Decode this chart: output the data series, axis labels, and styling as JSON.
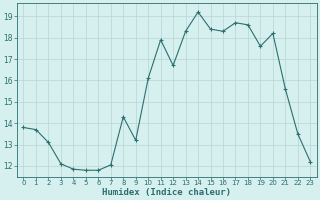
{
  "x": [
    0,
    1,
    2,
    3,
    4,
    5,
    6,
    7,
    8,
    9,
    10,
    11,
    12,
    13,
    14,
    15,
    16,
    17,
    18,
    19,
    20,
    21,
    22,
    23
  ],
  "y": [
    13.8,
    13.7,
    13.1,
    12.1,
    11.85,
    11.8,
    11.8,
    12.05,
    14.3,
    13.2,
    16.1,
    17.9,
    16.7,
    18.3,
    19.2,
    18.4,
    18.3,
    18.7,
    18.6,
    17.6,
    18.2,
    15.6,
    13.5,
    12.2
  ],
  "line_color": "#2d6e6e",
  "bg_color": "#d6f0f0",
  "grid_color": "#b8d4d4",
  "xlabel": "Humidex (Indice chaleur)",
  "yticks": [
    12,
    13,
    14,
    15,
    16,
    17,
    18,
    19
  ],
  "ylim": [
    11.5,
    19.6
  ],
  "xlim": [
    -0.5,
    23.5
  ],
  "xtick_fontsize": 5.0,
  "ytick_fontsize": 5.5,
  "xlabel_fontsize": 6.5
}
